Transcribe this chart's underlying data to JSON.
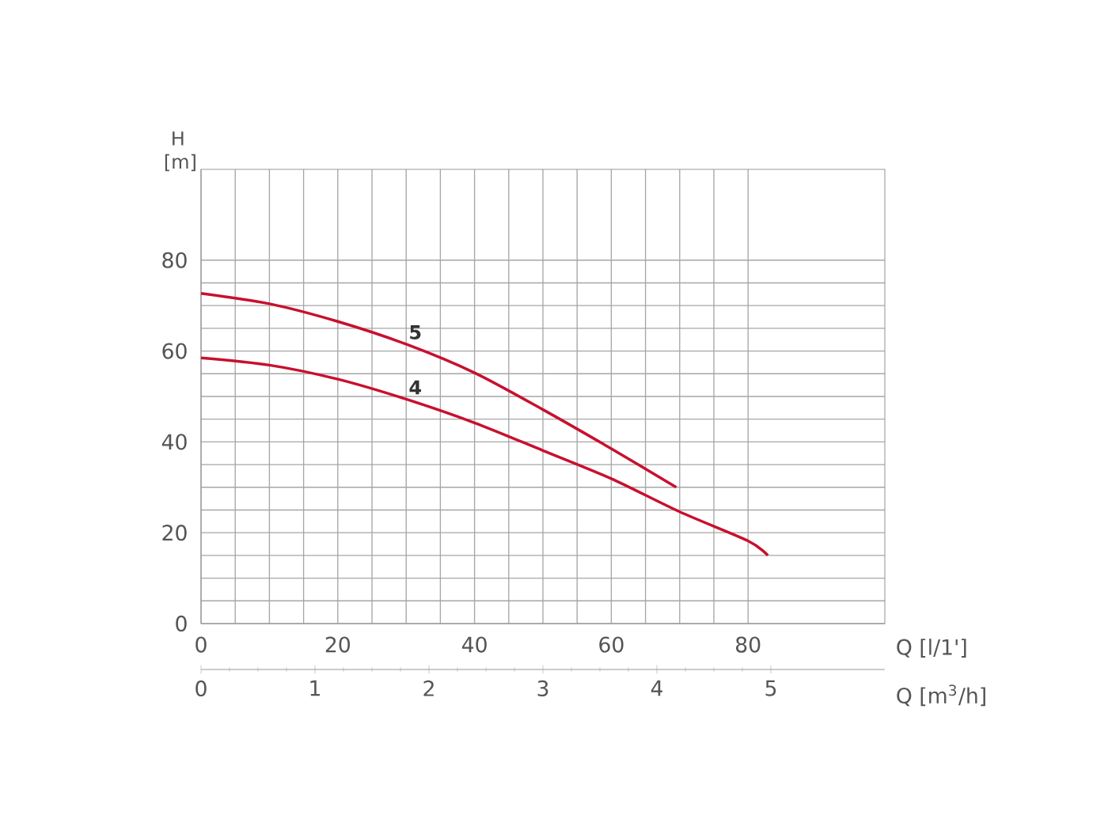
{
  "chart_data": {
    "type": "line",
    "xlabel": "Q [l/1']",
    "ylabel": "H [m]",
    "x2label": "Q [m$^{3}$/h]",
    "x": [
      0,
      10,
      20,
      30,
      40,
      50,
      60,
      69.5
    ],
    "xlim": [
      0,
      100
    ],
    "xticks": [
      0,
      20,
      40,
      60,
      80
    ],
    "ylim": [
      0,
      100
    ],
    "yticks": [
      0,
      20,
      40,
      60,
      80
    ],
    "x2lim": [
      0,
      6
    ],
    "x2ticks": [
      0,
      1,
      2,
      3,
      4,
      5
    ],
    "grid": true,
    "series": [
      {
        "name": "5",
        "color": "#c8102e",
        "values": [
          72.7,
          70.4,
          66.5,
          61.5,
          55.2,
          47.1,
          38.5,
          30.0
        ]
      },
      {
        "name": "4",
        "color": "#c8102e",
        "x": [
          0,
          10,
          20,
          30,
          40,
          50,
          60,
          70,
          80,
          82.9
        ],
        "values": [
          58.5,
          56.9,
          53.8,
          49.4,
          44.2,
          38.1,
          31.9,
          24.6,
          18.2,
          15.0
        ]
      }
    ]
  }
}
